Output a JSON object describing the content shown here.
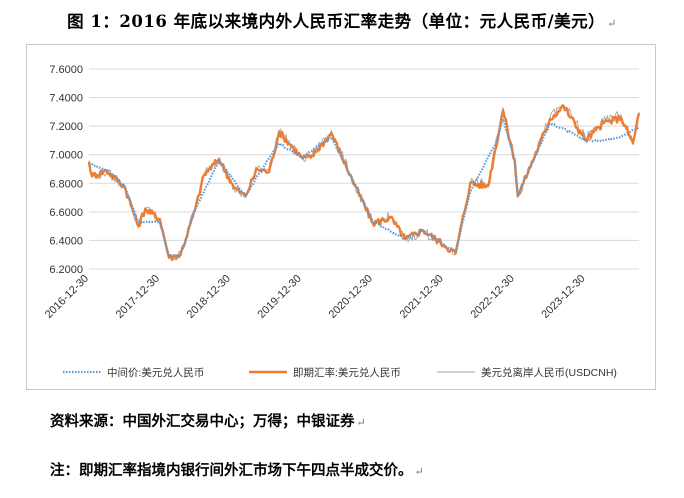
{
  "figure_title": "图 1：2016 年底以来境内外人民币汇率走势（单位：元人民币/美元）",
  "paragraph_mark": "↵",
  "source": "资料来源：中国外汇交易中心；万得；中银证券",
  "note": "注：即期汇率指境内银行间外汇市场下午四点半成交价。",
  "colors": {
    "central_parity": "#5b9bd5",
    "spot": "#ed7d31",
    "offshore": "#a5a5a5",
    "grid": "#d9d9d9"
  },
  "chart_data": {
    "type": "line",
    "title": "",
    "xlabel": "",
    "ylabel": "",
    "ylim": [
      6.2,
      7.6
    ],
    "y_ticks": [
      "6.2000",
      "6.4000",
      "6.6000",
      "6.8000",
      "7.0000",
      "7.2000",
      "7.4000",
      "7.6000"
    ],
    "x_range": [
      "2016-12-30",
      "2024-09-30"
    ],
    "x_ticks": [
      "2016-12-30",
      "2017-12-30",
      "2018-12-30",
      "2019-12-30",
      "2020-12-30",
      "2021-12-30",
      "2022-12-30",
      "2023-12-30"
    ],
    "grid": "horizontal",
    "legend_position": "bottom",
    "series": [
      {
        "name": "中间价:美元兑人民币",
        "style": "dotted",
        "points": [
          [
            "2016-12-30",
            6.94
          ],
          [
            "2017-03-30",
            6.89
          ],
          [
            "2017-06-30",
            6.78
          ],
          [
            "2017-09-10",
            6.53
          ],
          [
            "2017-12-30",
            6.53
          ],
          [
            "2018-02-15",
            6.29
          ],
          [
            "2018-04-15",
            6.29
          ],
          [
            "2018-06-30",
            6.62
          ],
          [
            "2018-10-31",
            6.96
          ],
          [
            "2019-03-15",
            6.71
          ],
          [
            "2019-05-15",
            6.85
          ],
          [
            "2019-09-05",
            7.08
          ],
          [
            "2019-12-30",
            6.98
          ],
          [
            "2020-05-31",
            7.12
          ],
          [
            "2020-09-30",
            6.79
          ],
          [
            "2020-12-30",
            6.53
          ],
          [
            "2021-06-15",
            6.41
          ],
          [
            "2021-09-15",
            6.47
          ],
          [
            "2021-12-30",
            6.37
          ],
          [
            "2022-03-01",
            6.32
          ],
          [
            "2022-05-15",
            6.74
          ],
          [
            "2022-09-30",
            7.1
          ],
          [
            "2022-10-31",
            7.25
          ],
          [
            "2022-12-30",
            6.97
          ],
          [
            "2023-01-15",
            6.72
          ],
          [
            "2023-06-30",
            7.22
          ],
          [
            "2023-09-08",
            7.18
          ],
          [
            "2023-12-30",
            7.1
          ],
          [
            "2024-03-30",
            7.1
          ],
          [
            "2024-06-30",
            7.13
          ],
          [
            "2024-09-30",
            7.19
          ]
        ]
      },
      {
        "name": "即期汇率:美元兑人民币",
        "style": "solid",
        "points": [
          [
            "2016-12-30",
            6.95
          ],
          [
            "2017-01-15",
            6.85
          ],
          [
            "2017-03-30",
            6.89
          ],
          [
            "2017-06-30",
            6.78
          ],
          [
            "2017-09-10",
            6.5
          ],
          [
            "2017-10-15",
            6.62
          ],
          [
            "2017-12-30",
            6.55
          ],
          [
            "2018-02-15",
            6.28
          ],
          [
            "2018-04-15",
            6.3
          ],
          [
            "2018-06-30",
            6.62
          ],
          [
            "2018-08-15",
            6.86
          ],
          [
            "2018-10-31",
            6.97
          ],
          [
            "2019-01-15",
            6.77
          ],
          [
            "2019-03-15",
            6.71
          ],
          [
            "2019-05-15",
            6.9
          ],
          [
            "2019-07-15",
            6.88
          ],
          [
            "2019-09-05",
            7.16
          ],
          [
            "2019-12-30",
            6.98
          ],
          [
            "2020-02-15",
            6.98
          ],
          [
            "2020-05-31",
            7.15
          ],
          [
            "2020-09-30",
            6.78
          ],
          [
            "2020-12-30",
            6.52
          ],
          [
            "2021-03-31",
            6.56
          ],
          [
            "2021-06-15",
            6.41
          ],
          [
            "2021-09-15",
            6.47
          ],
          [
            "2021-12-30",
            6.37
          ],
          [
            "2022-03-01",
            6.31
          ],
          [
            "2022-05-15",
            6.8
          ],
          [
            "2022-08-15",
            6.78
          ],
          [
            "2022-10-31",
            7.31
          ],
          [
            "2022-12-30",
            6.96
          ],
          [
            "2023-01-15",
            6.71
          ],
          [
            "2023-06-30",
            7.25
          ],
          [
            "2023-09-08",
            7.34
          ],
          [
            "2023-12-30",
            7.1
          ],
          [
            "2024-03-30",
            7.22
          ],
          [
            "2024-06-30",
            7.26
          ],
          [
            "2024-08-30",
            7.08
          ],
          [
            "2024-09-30",
            7.29
          ]
        ]
      },
      {
        "name": "美元兑离岸人民币(USDCNH)",
        "style": "thin",
        "points": [
          [
            "2016-12-30",
            6.96
          ],
          [
            "2017-01-15",
            6.84
          ],
          [
            "2017-03-30",
            6.88
          ],
          [
            "2017-06-30",
            6.78
          ],
          [
            "2017-09-10",
            6.49
          ],
          [
            "2017-10-15",
            6.63
          ],
          [
            "2017-12-30",
            6.54
          ],
          [
            "2018-02-15",
            6.27
          ],
          [
            "2018-04-15",
            6.3
          ],
          [
            "2018-06-30",
            6.63
          ],
          [
            "2018-08-15",
            6.87
          ],
          [
            "2018-10-31",
            6.98
          ],
          [
            "2019-01-15",
            6.76
          ],
          [
            "2019-03-15",
            6.7
          ],
          [
            "2019-05-15",
            6.91
          ],
          [
            "2019-07-15",
            6.89
          ],
          [
            "2019-09-05",
            7.17
          ],
          [
            "2019-12-30",
            6.97
          ],
          [
            "2020-02-15",
            6.99
          ],
          [
            "2020-05-31",
            7.17
          ],
          [
            "2020-09-30",
            6.78
          ],
          [
            "2020-12-30",
            6.51
          ],
          [
            "2021-03-31",
            6.57
          ],
          [
            "2021-06-15",
            6.4
          ],
          [
            "2021-09-15",
            6.47
          ],
          [
            "2021-12-30",
            6.36
          ],
          [
            "2022-03-01",
            6.3
          ],
          [
            "2022-05-15",
            6.81
          ],
          [
            "2022-08-15",
            6.79
          ],
          [
            "2022-10-31",
            7.33
          ],
          [
            "2022-12-30",
            6.95
          ],
          [
            "2023-01-15",
            6.7
          ],
          [
            "2023-06-30",
            7.26
          ],
          [
            "2023-09-08",
            7.35
          ],
          [
            "2023-12-30",
            7.12
          ],
          [
            "2024-03-30",
            7.23
          ],
          [
            "2024-06-30",
            7.28
          ],
          [
            "2024-08-30",
            7.07
          ],
          [
            "2024-09-30",
            7.3
          ]
        ]
      }
    ]
  }
}
